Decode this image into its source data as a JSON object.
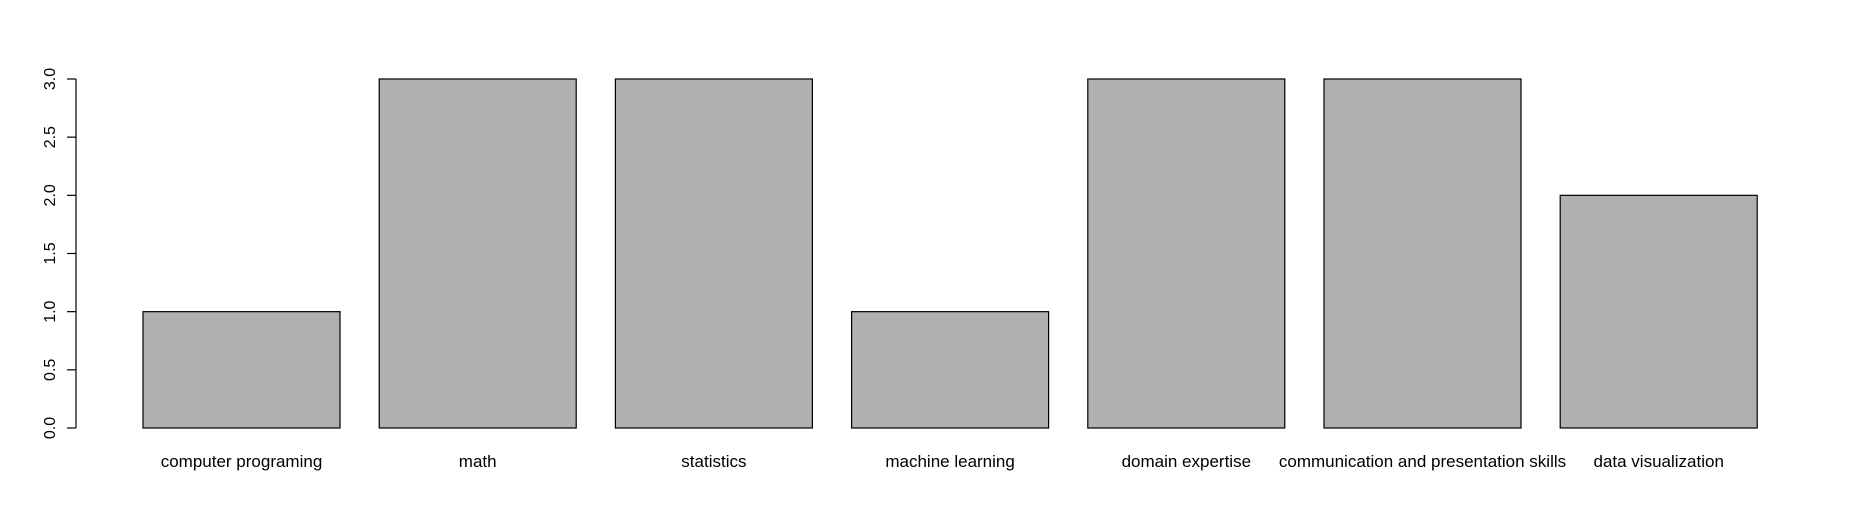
{
  "chart_data": {
    "type": "bar",
    "title": "",
    "xlabel": "",
    "ylabel": "",
    "categories": [
      "computer programing",
      "math",
      "statistics",
      "machine learning",
      "domain expertise",
      "communication and presentation skills",
      "data visualization"
    ],
    "values": [
      1,
      3,
      3,
      1,
      3,
      3,
      2
    ],
    "ylim": [
      0,
      3
    ],
    "yticks": [
      "0.0",
      "0.5",
      "1.0",
      "1.5",
      "2.0",
      "2.5",
      "3.0"
    ],
    "grid": false,
    "colors": {
      "bar_fill": "#b0b0b0",
      "bar_stroke": "#000000",
      "background": "#ffffff"
    }
  }
}
